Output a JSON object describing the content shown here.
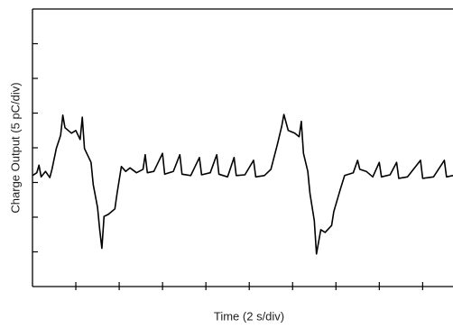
{
  "chart_data": {
    "type": "line",
    "xlabel": "Time (2 s/div)",
    "ylabel": "Charge Output (5 pC/div)",
    "xlim": [
      0,
      19.4
    ],
    "xticks": [
      2,
      4,
      6,
      8,
      10,
      12,
      14,
      16,
      18
    ],
    "ylim": [
      0,
      40
    ],
    "yticks": [
      5,
      10,
      15,
      20,
      25,
      30,
      35
    ],
    "grid": false,
    "x": [
      0,
      0.2,
      0.3,
      0.4,
      0.6,
      0.8,
      0.9,
      1.1,
      1.3,
      1.4,
      1.5,
      1.8,
      2.0,
      2.2,
      2.3,
      2.4,
      2.7,
      2.8,
      3.0,
      3.1,
      3.2,
      3.3,
      3.5,
      3.8,
      3.9,
      4.1,
      4.3,
      4.5,
      4.8,
      5.1,
      5.2,
      5.3,
      5.6,
      6.0,
      6.1,
      6.5,
      6.8,
      6.9,
      7.3,
      7.7,
      7.8,
      8.2,
      8.5,
      8.6,
      9.0,
      9.3,
      9.4,
      9.8,
      10.2,
      10.3,
      10.7,
      11.0,
      11.3,
      11.5,
      11.6,
      11.8,
      12.1,
      12.3,
      12.4,
      12.5,
      12.7,
      12.8,
      13.0,
      13.1,
      13.3,
      13.5,
      13.8,
      13.9,
      14.2,
      14.4,
      14.8,
      15.0,
      15.1,
      15.4,
      15.7,
      16.0,
      16.1,
      16.5,
      16.8,
      16.9,
      17.3,
      17.9,
      18.0,
      18.5,
      19.0,
      19.1,
      19.4
    ],
    "series": [
      {
        "color": "#000000",
        "values": [
          16.0,
          16.4,
          17.5,
          15.8,
          16.6,
          15.7,
          16.9,
          19.9,
          21.8,
          24.7,
          22.9,
          22.1,
          22.5,
          21.2,
          24.4,
          19.9,
          17.9,
          14.7,
          11.4,
          8.2,
          5.5,
          10.1,
          10.4,
          11.2,
          13.4,
          17.3,
          16.6,
          17.1,
          16.4,
          16.9,
          19.0,
          16.4,
          16.6,
          19.2,
          16.2,
          16.6,
          19.0,
          16.2,
          16.0,
          18.6,
          16.1,
          16.4,
          19.0,
          16.2,
          15.8,
          18.6,
          16.0,
          16.1,
          18.2,
          15.8,
          16.0,
          16.9,
          20.5,
          23.1,
          24.8,
          22.5,
          22.1,
          21.6,
          23.8,
          19.2,
          16.6,
          13.4,
          9.5,
          4.7,
          8.2,
          7.8,
          8.8,
          10.8,
          14.0,
          16.0,
          16.4,
          18.2,
          16.9,
          16.6,
          15.8,
          17.9,
          15.8,
          16.1,
          17.9,
          15.6,
          15.8,
          18.2,
          15.6,
          15.8,
          18.2,
          15.8,
          16.0
        ]
      }
    ]
  }
}
